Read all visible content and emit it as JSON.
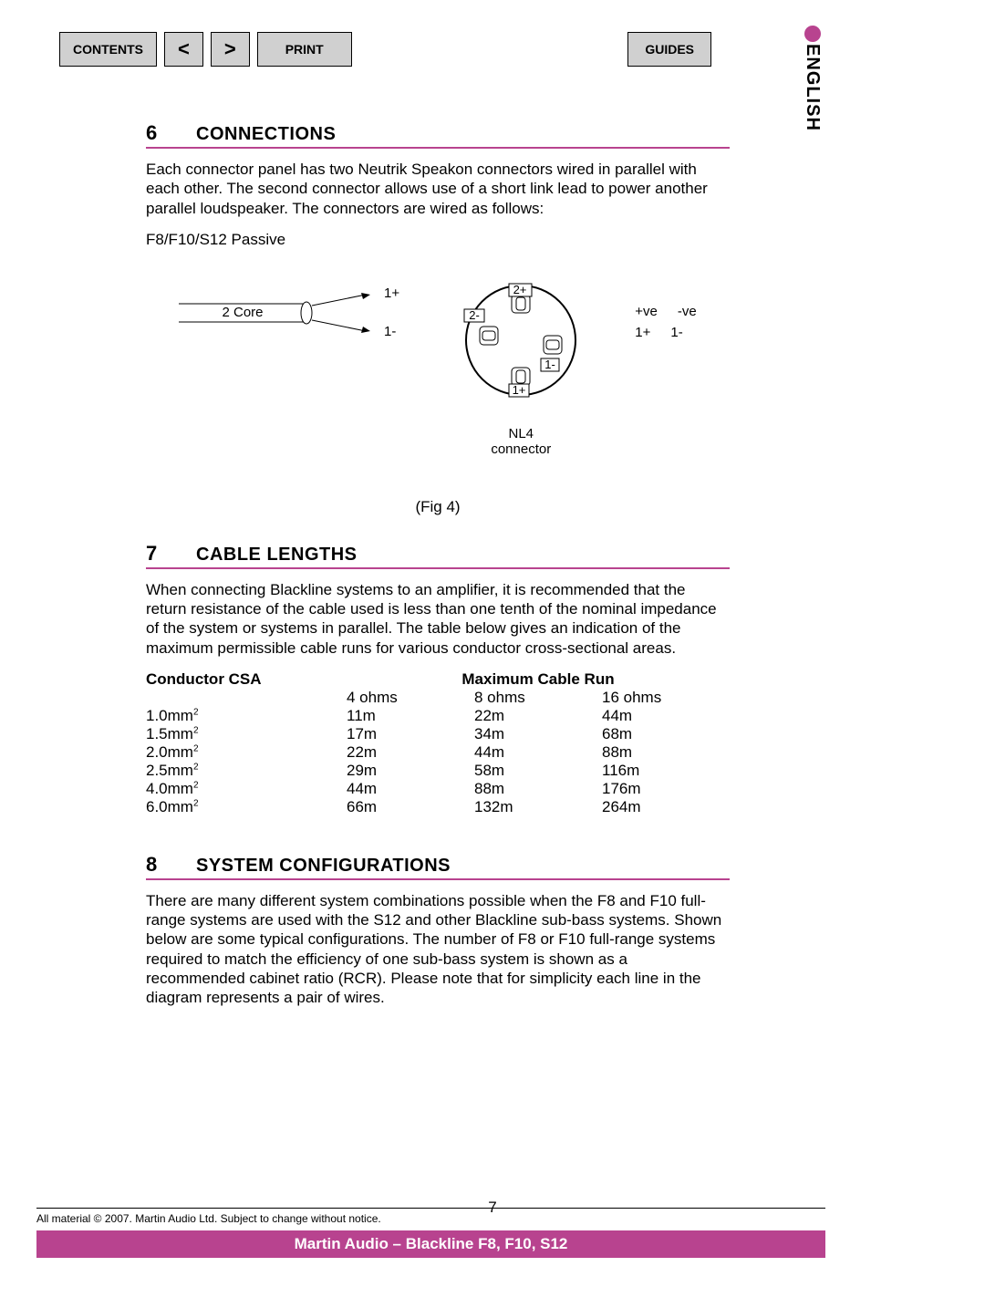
{
  "nav": {
    "contents": "CONTENTS",
    "prev": "<",
    "next": ">",
    "print": "PRINT",
    "guides": "GUIDES"
  },
  "lang_tab": "ENGLISH",
  "sections": {
    "s6": {
      "num": "6",
      "title": "CONNECTIONS"
    },
    "s7": {
      "num": "7",
      "title": "CABLE LENGTHS"
    },
    "s8": {
      "num": "8",
      "title": "SYSTEM CONFIGURATIONS"
    }
  },
  "para6": "Each connector panel has two Neutrik Speakon connectors wired in parallel with each other.  The second connector allows use of a short link lead to power another parallel loudspeaker.  The connectors are wired as follows:",
  "subtype": "F8/F10/S12 Passive",
  "diagram": {
    "cable_label": "2 Core",
    "pin_1p": "1+",
    "pin_1m": "1-",
    "pin_2p": "2+",
    "pin_2m": "2-",
    "connector_name": "NL4",
    "connector_sub": "connector",
    "pos": "+ve",
    "neg": "-ve"
  },
  "fig_caption": "(Fig 4)",
  "para7": "When connecting Blackline systems to an amplifier, it is recommended that the return resistance of the cable used is less than one tenth of the nominal impedance of the system or systems in parallel. The table below gives an indication of the maximum permissible cable runs for various conductor cross-sectional areas.",
  "table": {
    "head_csa": "Conductor CSA",
    "head_run": "Maximum Cable Run",
    "sub_4": "4 ohms",
    "sub_8": "8 ohms",
    "sub_16": "16 ohms",
    "rows": [
      {
        "csa": "1.0mm",
        "c4": "11m",
        "c8": "22m",
        "c16": "44m"
      },
      {
        "csa": "1.5mm",
        "c4": "17m",
        "c8": "34m",
        "c16": "68m"
      },
      {
        "csa": "2.0mm",
        "c4": "22m",
        "c8": "44m",
        "c16": "88m"
      },
      {
        "csa": "2.5mm",
        "c4": "29m",
        "c8": "58m",
        "c16": "116m"
      },
      {
        "csa": "4.0mm",
        "c4": "44m",
        "c8": "88m",
        "c16": "176m"
      },
      {
        "csa": "6.0mm",
        "c4": "66m",
        "c8": "132m",
        "c16": "264m"
      }
    ]
  },
  "para8": "There are many different system combinations possible when the F8 and F10 full-range systems are used with the S12 and other Blackline sub-bass systems.  Shown below are some typical configurations. The number of F8 or F10 full-range systems required to match the efficiency of one sub-bass system is shown as a recommended cabinet ratio (RCR). Please note that for simplicity each line in the diagram represents a pair of wires.",
  "page_num": "7",
  "footer_copy": "All material © 2007. Martin Audio Ltd. Subject to change without notice.",
  "footer_bar": "Martin Audio – Blackline F8, F10, S12",
  "colors": {
    "accent": "#b8438f",
    "nav_bg": "#d0d0d0"
  }
}
